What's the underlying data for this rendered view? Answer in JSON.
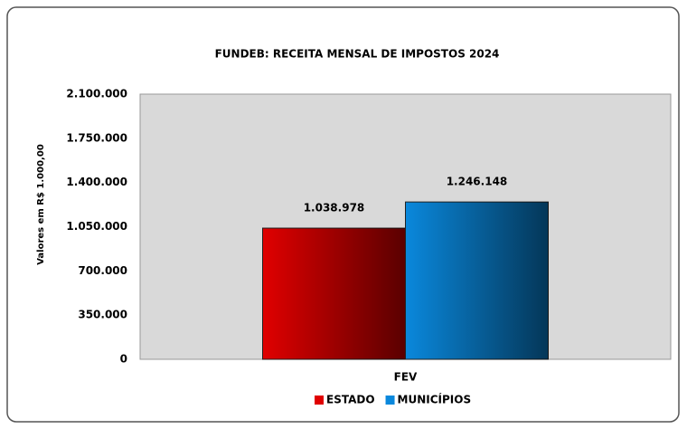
{
  "chart_data": {
    "type": "bar",
    "title": "FUNDEB: RECEITA MENSAL DE IMPOSTOS 2024",
    "y_label": "Valores em R$ 1.000,00",
    "categories": [
      "FEV"
    ],
    "series": [
      {
        "name": "ESTADO",
        "color": "#e00000",
        "values": [
          1038978
        ],
        "value_labels": [
          "1.038.978"
        ]
      },
      {
        "name": "MUNICÍPIOS",
        "color": "#0a88dc",
        "values": [
          1246148
        ],
        "value_labels": [
          "1.246.148"
        ]
      }
    ],
    "ylim": [
      0,
      2100000
    ],
    "yticks": [
      0,
      {
        "value": 350000,
        "label": "350.000"
      },
      {
        "value": 700000,
        "label": "700.000"
      },
      {
        "value": 1050000,
        "label": "1.050.000"
      },
      {
        "value": 1400000,
        "label": "1.400.000"
      },
      {
        "value": 1750000,
        "label": "1.750.000"
      },
      {
        "value": 2100000,
        "label": "2.100.000"
      }
    ],
    "grid": false,
    "legend": "bottom"
  }
}
